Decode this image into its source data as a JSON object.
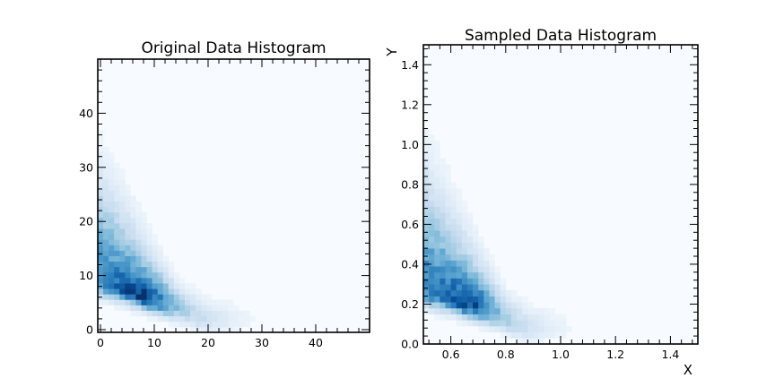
{
  "chart_data": [
    {
      "type": "heatmap",
      "title": "Original Data Histogram",
      "xlabel": "",
      "ylabel": "",
      "xlim": [
        -0.5,
        50
      ],
      "ylim": [
        -0.5,
        50
      ],
      "xticks": [
        0,
        10,
        20,
        30,
        40
      ],
      "yticks": [
        0,
        10,
        20,
        30,
        40
      ],
      "bins": 50,
      "colormap": "Blues",
      "density_peak": {
        "x": 8,
        "y": 6
      },
      "density_ridge": [
        [
          0,
          8.5
        ],
        [
          5,
          7.2
        ],
        [
          10,
          5.2
        ],
        [
          15,
          3.5
        ],
        [
          20,
          1.5
        ]
      ],
      "grid": false
    },
    {
      "type": "heatmap",
      "title": "Sampled Data Histogram",
      "xlabel": "X",
      "ylabel": "Y",
      "xlim": [
        0.5,
        1.5
      ],
      "ylim": [
        0.0,
        1.5
      ],
      "xticks": [
        0.6,
        0.8,
        1.0,
        1.2,
        1.4
      ],
      "yticks": [
        0.0,
        0.2,
        0.4,
        0.6,
        0.8,
        1.0,
        1.2,
        1.4
      ],
      "bins": 50,
      "colormap": "Blues",
      "density_peak": {
        "x": 0.67,
        "y": 0.19
      },
      "density_ridge": [
        [
          0.5,
          0.26
        ],
        [
          0.6,
          0.23
        ],
        [
          0.7,
          0.18
        ],
        [
          0.8,
          0.12
        ],
        [
          0.88,
          0.07
        ]
      ],
      "grid": false
    }
  ],
  "colors": {
    "background": "#f7fbff",
    "low": "#deebf7",
    "mid": "#6baed6",
    "high": "#08306b"
  }
}
